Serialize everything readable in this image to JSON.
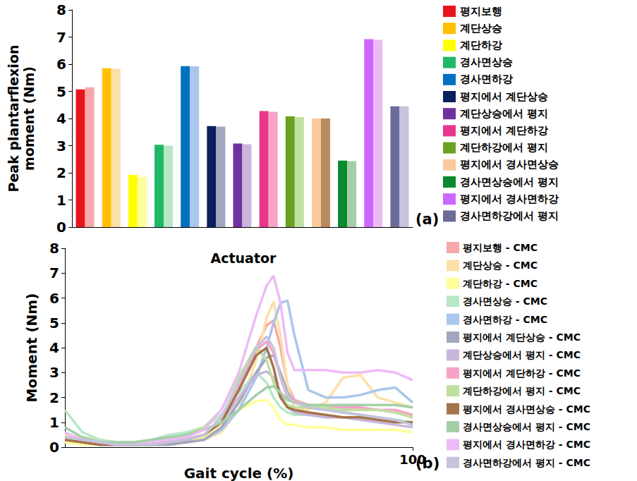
{
  "chart_data": [
    {
      "type": "bar",
      "ylabel": "Peak plantarflexion\nmoment (Nm)",
      "annotations": [
        "(a)"
      ],
      "categories": [
        "평지보행",
        "계단상승",
        "계단하강",
        "경사면상승",
        "경사면하강",
        "평지에서 계단상승",
        "계단상승에서 평지",
        "평지에서 계단하강",
        "계단하강에서 평지",
        "평지에서 경사면상승",
        "경사면상승에서 평지",
        "평지에서 경사면하강",
        "경사면하강에서 평지"
      ],
      "series": [
        {
          "values": [
            5.07,
            5.85,
            1.92,
            3.03,
            5.93,
            3.72,
            3.08,
            4.27,
            4.08,
            4.0,
            2.45,
            6.92,
            4.45
          ],
          "colors": [
            "#e8141c",
            "#ffc000",
            "#ffff00",
            "#1fb866",
            "#0070c0",
            "#0a1f5c",
            "#7030a0",
            "#e8378a",
            "#6aa121",
            "#fbc99e",
            "#0a8a2e",
            "#cc66ff",
            "#6b6b9a"
          ]
        },
        {
          "values": [
            5.15,
            5.83,
            1.85,
            3.0,
            5.92,
            3.7,
            3.05,
            4.25,
            4.05,
            4.0,
            2.43,
            6.9,
            4.45
          ],
          "colors": [
            "#f7a8a8",
            "#fde0a8",
            "#ffff99",
            "#b6e8c6",
            "#a9c6ec",
            "#a3a7bd",
            "#c9b6dc",
            "#f7a3c6",
            "#bfe0a0",
            "#b98a60",
            "#a3cfa8",
            "#ecbbf7",
            "#c4c4dc"
          ]
        }
      ],
      "ylim": [
        0,
        8
      ],
      "yticks": [
        0,
        1,
        2,
        3,
        4,
        5,
        6,
        7,
        8
      ],
      "grid": false,
      "tick_labels": "y",
      "legend": "right"
    },
    {
      "type": "line",
      "title": "Actuator",
      "xlabel": "Gait cycle (%)",
      "ylabel": "Moment (Nm)",
      "annotations": [
        "(b)"
      ],
      "x": [
        0,
        5,
        10,
        15,
        20,
        25,
        30,
        35,
        40,
        45,
        50,
        55,
        58,
        60,
        62,
        64,
        66,
        70,
        75,
        80,
        85,
        90,
        95,
        100
      ],
      "series": [
        {
          "name": "평지보행 - CMC",
          "color": "#f7a8a8",
          "values": [
            0.5,
            0.3,
            0.15,
            0.1,
            0.1,
            0.1,
            0.15,
            0.2,
            0.4,
            1.0,
            2.3,
            4.0,
            4.9,
            5.1,
            4.0,
            2.5,
            1.9,
            1.7,
            1.6,
            1.5,
            1.5,
            1.5,
            1.4,
            1.2
          ]
        },
        {
          "name": "계단상승 - CMC",
          "color": "#fde0a8",
          "values": [
            0.5,
            0.4,
            0.3,
            0.2,
            0.15,
            0.15,
            0.2,
            0.2,
            0.3,
            0.6,
            1.5,
            3.5,
            5.2,
            5.85,
            4.5,
            2.5,
            1.6,
            1.5,
            1.8,
            2.8,
            2.9,
            2.0,
            1.8,
            1.6
          ]
        },
        {
          "name": "계단하강 - CMC",
          "color": "#ffff99",
          "values": [
            0.2,
            0.1,
            0.1,
            0.1,
            0.1,
            0.1,
            0.1,
            0.2,
            0.4,
            0.9,
            1.5,
            1.85,
            1.9,
            1.6,
            1.1,
            0.9,
            0.9,
            0.8,
            0.8,
            0.7,
            0.7,
            0.7,
            0.7,
            0.6
          ]
        },
        {
          "name": "경사면상승 - CMC",
          "color": "#b6e8c6",
          "values": [
            1.5,
            0.6,
            0.3,
            0.2,
            0.2,
            0.3,
            0.5,
            0.6,
            0.8,
            1.3,
            2.2,
            3.0,
            2.6,
            2.0,
            1.6,
            1.4,
            1.3,
            1.3,
            1.2,
            1.2,
            1.2,
            1.1,
            1.1,
            1.0
          ]
        },
        {
          "name": "경사면하강 - CMC",
          "color": "#a9c6ec",
          "values": [
            0.3,
            0.2,
            0.1,
            0.1,
            0.1,
            0.1,
            0.1,
            0.2,
            0.3,
            0.7,
            1.5,
            2.8,
            4.0,
            5.0,
            5.8,
            5.9,
            4.5,
            2.3,
            2.0,
            2.0,
            2.1,
            2.3,
            2.4,
            1.8
          ]
        },
        {
          "name": "평지에서 계단상승 - CMC",
          "color": "#a3a7bd",
          "values": [
            0.3,
            0.2,
            0.1,
            0.1,
            0.1,
            0.1,
            0.1,
            0.2,
            0.3,
            0.8,
            1.8,
            3.0,
            3.6,
            3.7,
            3.0,
            2.2,
            1.8,
            1.6,
            1.5,
            1.4,
            1.3,
            1.2,
            1.1,
            0.9
          ]
        },
        {
          "name": "계단상승에서 평지 - CMC",
          "color": "#c9b6dc",
          "values": [
            0.3,
            0.2,
            0.1,
            0.1,
            0.1,
            0.1,
            0.2,
            0.3,
            0.5,
            1.0,
            2.0,
            2.9,
            3.05,
            2.8,
            2.2,
            1.6,
            1.4,
            1.3,
            1.2,
            1.2,
            1.1,
            1.0,
            0.9,
            0.8
          ]
        },
        {
          "name": "평지에서 계단하강 - CMC",
          "color": "#f7a3c6",
          "values": [
            0.3,
            0.2,
            0.1,
            0.1,
            0.1,
            0.1,
            0.2,
            0.3,
            0.5,
            1.2,
            2.5,
            3.9,
            4.25,
            3.8,
            2.8,
            2.0,
            1.8,
            1.7,
            1.6,
            1.6,
            1.6,
            1.5,
            1.5,
            1.3
          ]
        },
        {
          "name": "계단하강에서 평지 - CMC",
          "color": "#bfe0a0",
          "values": [
            0.4,
            0.3,
            0.2,
            0.1,
            0.1,
            0.2,
            0.3,
            0.5,
            0.8,
            1.5,
            2.8,
            4.05,
            3.5,
            2.6,
            2.0,
            1.7,
            1.6,
            1.6,
            1.6,
            1.5,
            1.5,
            1.5,
            1.4,
            1.2
          ]
        },
        {
          "name": "평지에서 경사면상승 - CMC",
          "color": "#a5734a",
          "values": [
            0.3,
            0.2,
            0.1,
            0.1,
            0.1,
            0.1,
            0.2,
            0.3,
            0.5,
            1.0,
            2.3,
            3.7,
            4.0,
            3.2,
            2.0,
            1.6,
            1.5,
            1.4,
            1.3,
            1.2,
            1.2,
            1.1,
            1.0,
            1.0
          ]
        },
        {
          "name": "경사면상승에서 평지 - CMC",
          "color": "#a3cfa8",
          "values": [
            0.8,
            0.4,
            0.2,
            0.2,
            0.2,
            0.3,
            0.4,
            0.5,
            0.7,
            1.0,
            1.5,
            2.1,
            2.4,
            2.45,
            2.2,
            1.9,
            1.8,
            1.7,
            1.7,
            1.7,
            1.7,
            1.7,
            1.7,
            1.6
          ]
        },
        {
          "name": "평지에서 경사면하강 - CMC",
          "color": "#ecbbf7",
          "values": [
            0.6,
            0.3,
            0.2,
            0.1,
            0.1,
            0.2,
            0.3,
            0.4,
            0.7,
            1.5,
            3.0,
            5.3,
            6.5,
            6.9,
            5.8,
            3.8,
            3.1,
            3.1,
            3.1,
            3.0,
            3.0,
            3.1,
            3.0,
            2.7
          ]
        },
        {
          "name": "경사면하강에서 평지 - CMC",
          "color": "#c4c4dc",
          "values": [
            0.4,
            0.3,
            0.2,
            0.1,
            0.1,
            0.1,
            0.2,
            0.3,
            0.5,
            1.2,
            2.6,
            4.0,
            4.45,
            4.0,
            2.8,
            2.1,
            1.8,
            1.6,
            1.5,
            1.4,
            1.3,
            1.2,
            1.1,
            0.9
          ]
        }
      ],
      "xlim": [
        0,
        100
      ],
      "xticks": [
        100
      ],
      "ylim": [
        0,
        8
      ],
      "yticks": [
        0,
        1,
        2,
        3,
        4,
        5,
        6,
        7,
        8
      ],
      "grid": false,
      "legend": "right"
    }
  ]
}
